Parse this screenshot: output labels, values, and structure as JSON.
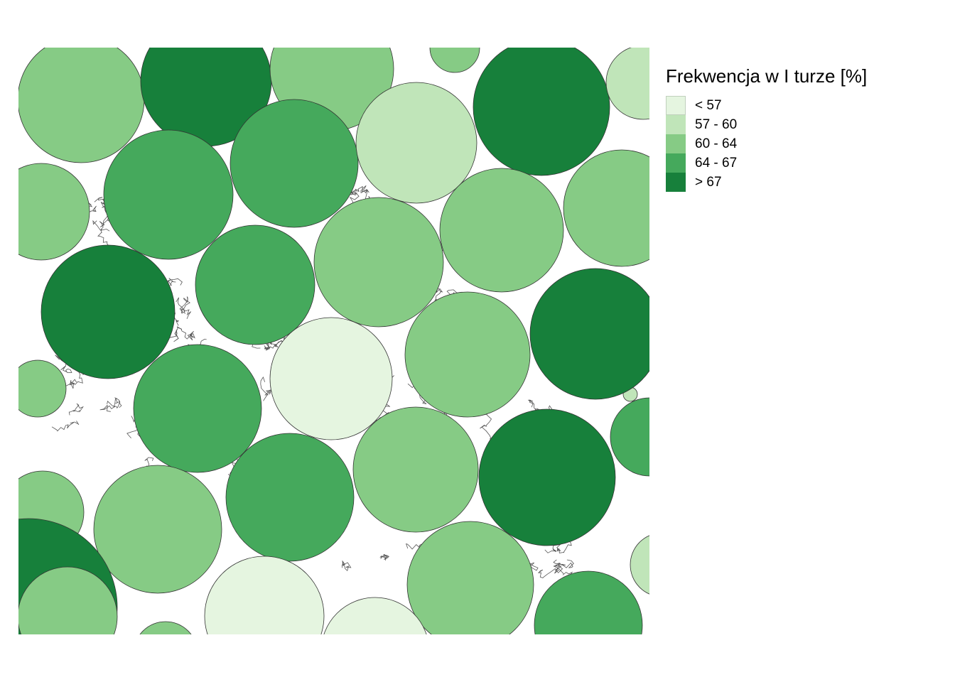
{
  "legend": {
    "title": "Frekwencja w I turze [%]",
    "classes": [
      {
        "label": "< 57",
        "color": "#e5f5e0"
      },
      {
        "label": "57 - 60",
        "color": "#c0e5b9"
      },
      {
        "label": "60 - 64",
        "color": "#86cb85"
      },
      {
        "label": "64 - 67",
        "color": "#45a95c"
      },
      {
        "label": "> 67",
        "color": "#17803b"
      }
    ]
  },
  "regions": [
    {
      "class": 2
    },
    {
      "class": 4
    },
    {
      "class": 2
    },
    {
      "class": 2
    },
    {
      "class": 4
    },
    {
      "class": 1
    },
    {
      "class": 2
    },
    {
      "class": 3
    },
    {
      "class": 3
    },
    {
      "class": 1
    },
    {
      "class": 2
    },
    {
      "class": 4
    },
    {
      "class": 3
    },
    {
      "class": 2
    },
    {
      "class": 2
    },
    {
      "class": 0
    },
    {
      "class": 3
    },
    {
      "class": 2
    },
    {
      "class": 1
    },
    {
      "class": 2
    },
    {
      "class": 4
    },
    {
      "class": 2
    },
    {
      "class": 3
    },
    {
      "class": 4
    },
    {
      "class": 3
    },
    {
      "class": 2
    },
    {
      "class": 2
    },
    {
      "class": 4
    },
    {
      "class": 2
    },
    {
      "class": 1
    },
    {
      "class": 2
    },
    {
      "class": 0
    },
    {
      "class": 0
    },
    {
      "class": 2
    },
    {
      "class": 2
    },
    {
      "class": 3
    }
  ]
}
